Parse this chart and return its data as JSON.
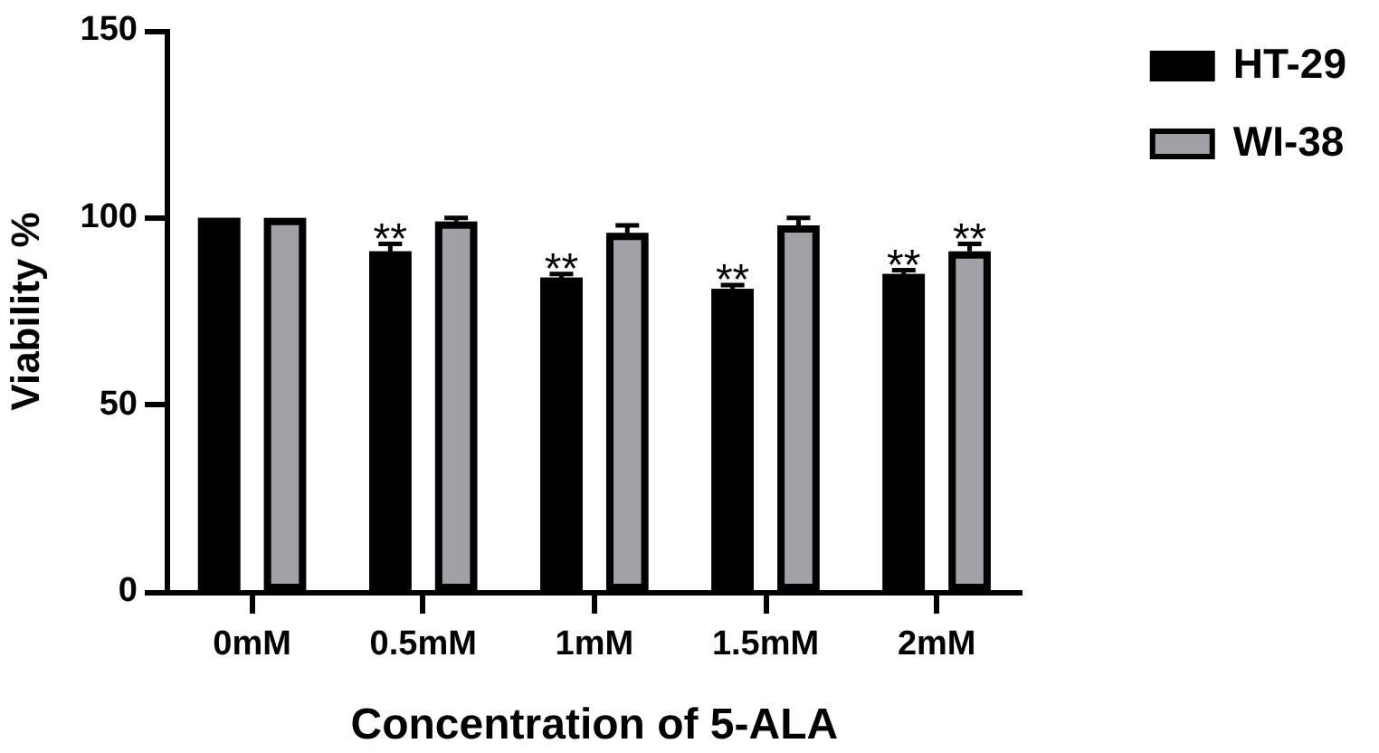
{
  "chart_data": {
    "type": "bar",
    "categories": [
      "0mM",
      "0.5mM",
      "1mM",
      "1.5mM",
      "2mM"
    ],
    "series": [
      {
        "name": "HT-29",
        "color": "#000000",
        "values": [
          100,
          91,
          84,
          81,
          85
        ],
        "errors": [
          null,
          2,
          1,
          1,
          1
        ]
      },
      {
        "name": "WI-38",
        "color": "#a1a1a5",
        "values": [
          100,
          99,
          96,
          98,
          91
        ],
        "errors": [
          null,
          1,
          2,
          2,
          2
        ]
      }
    ],
    "xlabel": "Concentration of 5-ALA",
    "ylabel": "Viability %",
    "ylim": [
      0,
      150
    ],
    "yticks": [
      0,
      50,
      100,
      150
    ],
    "legend": "top right",
    "annotations": [
      "**",
      "**",
      "**",
      "**",
      "**"
    ]
  }
}
